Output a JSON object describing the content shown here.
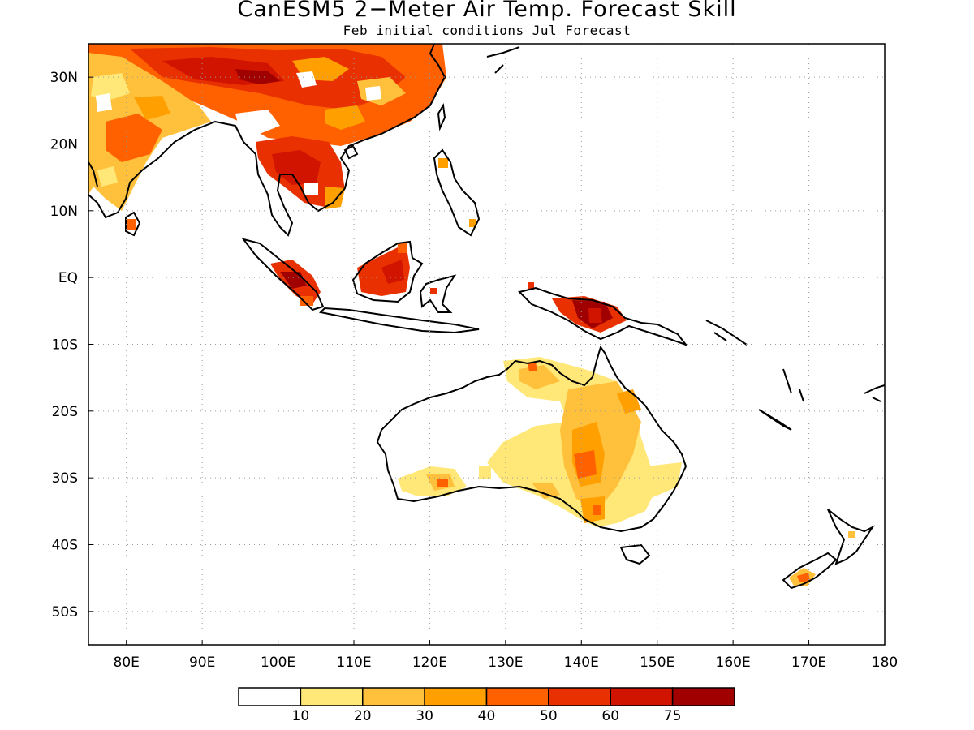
{
  "title": "CanESM5 2−Meter Air Temp. Forecast Skill",
  "subtitle": "Feb initial conditions  Jul Forecast",
  "map": {
    "lon_range": [
      75,
      180
    ],
    "lat_range": [
      -55,
      35
    ],
    "grid_lines": true,
    "lon_ticks": [
      {
        "value": 80,
        "label": "80E"
      },
      {
        "value": 90,
        "label": "90E"
      },
      {
        "value": 100,
        "label": "100E"
      },
      {
        "value": 110,
        "label": "110E"
      },
      {
        "value": 120,
        "label": "120E"
      },
      {
        "value": 130,
        "label": "130E"
      },
      {
        "value": 140,
        "label": "140E"
      },
      {
        "value": 150,
        "label": "150E"
      },
      {
        "value": 160,
        "label": "160E"
      },
      {
        "value": 170,
        "label": "170E"
      },
      {
        "value": 180,
        "label": "180"
      }
    ],
    "lat_ticks": [
      {
        "value": 30,
        "label": "30N"
      },
      {
        "value": 20,
        "label": "20N"
      },
      {
        "value": 10,
        "label": "10N"
      },
      {
        "value": 0,
        "label": "EQ"
      },
      {
        "value": -10,
        "label": "10S"
      },
      {
        "value": -20,
        "label": "20S"
      },
      {
        "value": -30,
        "label": "30S"
      },
      {
        "value": -40,
        "label": "40S"
      },
      {
        "value": -50,
        "label": "50S"
      }
    ]
  },
  "colorbar": {
    "colors": [
      "#ffffff",
      "#ffe878",
      "#ffc03c",
      "#ffa000",
      "#ff6000",
      "#e83000",
      "#d01400",
      "#a00000"
    ],
    "labels": [
      "10",
      "20",
      "30",
      "40",
      "50",
      "60",
      "75"
    ]
  },
  "regions": {
    "china": "China / Tibet warm-season skill",
    "india": "India",
    "indochina": "Indochina",
    "sumatra": "Sumatra",
    "borneo": "Borneo",
    "new_guinea": "New Guinea",
    "australia": "Australia",
    "new_zealand": "New Zealand"
  }
}
